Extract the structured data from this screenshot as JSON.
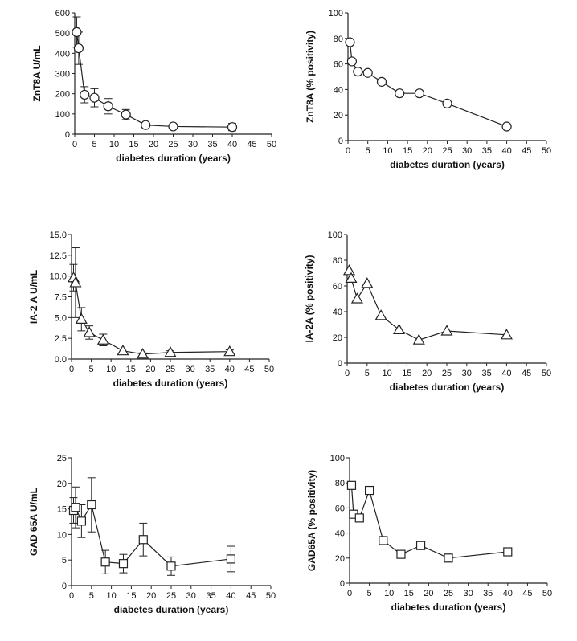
{
  "chart_data": [
    {
      "type": "line",
      "panel": "top-left",
      "marker": "circle",
      "xlabel": "diabetes duration (years)",
      "ylabel": "ZnT8A U/mL",
      "xlim": [
        0,
        50
      ],
      "ylim": [
        0,
        600
      ],
      "x_ticks": [
        "0",
        "5",
        "10",
        "15",
        "20",
        "25",
        "30",
        "35",
        "40",
        "45",
        "50"
      ],
      "y_ticks": [
        "0",
        "100",
        "200",
        "300",
        "400",
        "500",
        "600"
      ],
      "x": [
        0.5,
        1,
        2.5,
        5,
        8.5,
        13,
        18,
        25,
        40
      ],
      "values": [
        505,
        425,
        195,
        180,
        138,
        97,
        45,
        38,
        35
      ],
      "errors": [
        75,
        80,
        40,
        45,
        38,
        25,
        8,
        6,
        18
      ]
    },
    {
      "type": "line",
      "panel": "top-right",
      "marker": "circle",
      "xlabel": "diabetes duration (years)",
      "ylabel": "ZnT8A (% positivity)",
      "xlim": [
        0,
        50
      ],
      "ylim": [
        0,
        100
      ],
      "x_ticks": [
        "0",
        "5",
        "10",
        "15",
        "20",
        "25",
        "30",
        "35",
        "40",
        "45",
        "50"
      ],
      "y_ticks": [
        "0",
        "20",
        "40",
        "60",
        "80",
        "100"
      ],
      "x": [
        0.5,
        1,
        2.5,
        5,
        8.5,
        13,
        18,
        25,
        40
      ],
      "values": [
        77,
        62,
        54,
        53,
        46,
        37,
        37,
        29,
        11
      ]
    },
    {
      "type": "line",
      "panel": "middle-left",
      "marker": "triangle",
      "xlabel": "diabetes duration (years)",
      "ylabel": "IA-2 A U/mL",
      "xlim": [
        0,
        50
      ],
      "ylim": [
        0,
        15
      ],
      "x_ticks": [
        "0",
        "5",
        "10",
        "15",
        "20",
        "25",
        "30",
        "35",
        "40",
        "45",
        "50"
      ],
      "y_ticks": [
        "0.0",
        "2.5",
        "5.0",
        "7.5",
        "10.0",
        "12.5",
        "15.0"
      ],
      "x": [
        0.5,
        1,
        2.5,
        4.5,
        8,
        13,
        18,
        25,
        40
      ],
      "values": [
        9.8,
        9.2,
        4.8,
        3.2,
        2.3,
        1.0,
        0.6,
        0.8,
        0.9
      ],
      "errors": [
        1.6,
        4.2,
        1.4,
        0.8,
        0.7,
        0.2,
        0.15,
        0.2,
        0.2
      ]
    },
    {
      "type": "line",
      "panel": "middle-right",
      "marker": "triangle",
      "xlabel": "diabetes duration (years)",
      "ylabel": "IA-2A (% positivity)",
      "xlim": [
        0,
        50
      ],
      "ylim": [
        0,
        100
      ],
      "x_ticks": [
        "0",
        "5",
        "10",
        "15",
        "20",
        "25",
        "30",
        "35",
        "40",
        "45",
        "50"
      ],
      "y_ticks": [
        "0",
        "20",
        "40",
        "60",
        "80",
        "100"
      ],
      "x": [
        0.5,
        1,
        2.5,
        5,
        8.5,
        13,
        18,
        25,
        40
      ],
      "values": [
        72,
        66,
        50,
        62,
        37,
        26,
        18,
        25,
        22
      ]
    },
    {
      "type": "line",
      "panel": "bottom-left",
      "marker": "square",
      "xlabel": "diabetes duration (years)",
      "ylabel": "GAD 65A U/mL",
      "xlim": [
        0,
        50
      ],
      "ylim": [
        0,
        25
      ],
      "x_ticks": [
        "0",
        "5",
        "10",
        "15",
        "20",
        "25",
        "30",
        "35",
        "40",
        "45",
        "50"
      ],
      "y_ticks": [
        "0",
        "5",
        "10",
        "15",
        "20",
        "25"
      ],
      "x": [
        0.5,
        1,
        2.5,
        5,
        8.5,
        13,
        18,
        25,
        40
      ],
      "values": [
        14.7,
        15.3,
        12.6,
        15.8,
        4.6,
        4.3,
        9.0,
        3.8,
        5.2
      ],
      "errors": [
        2.5,
        4.0,
        3.2,
        5.3,
        2.3,
        1.8,
        3.2,
        1.8,
        2.5
      ]
    },
    {
      "type": "line",
      "panel": "bottom-right",
      "marker": "square",
      "xlabel": "diabetes duration (years)",
      "ylabel": "GAD65A (% positivity)",
      "xlim": [
        0,
        50
      ],
      "ylim": [
        0,
        100
      ],
      "x_ticks": [
        "0",
        "5",
        "10",
        "15",
        "20",
        "25",
        "30",
        "35",
        "40",
        "45",
        "50"
      ],
      "y_ticks": [
        "0",
        "20",
        "40",
        "60",
        "80",
        "100"
      ],
      "x": [
        0.5,
        1,
        2.5,
        5,
        8.5,
        13,
        18,
        25,
        40
      ],
      "values": [
        78,
        55,
        52,
        74,
        34,
        23,
        30,
        20,
        25
      ]
    }
  ]
}
